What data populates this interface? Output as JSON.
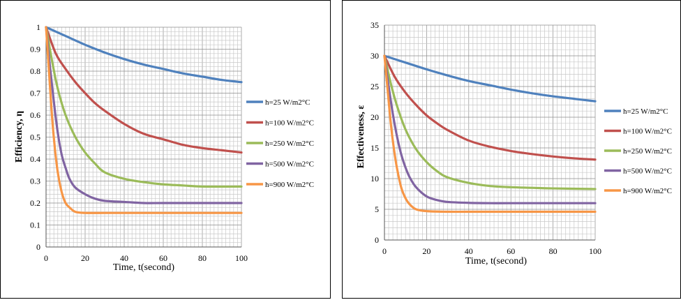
{
  "chart_data": [
    {
      "type": "line",
      "title": "",
      "xlabel": "Time, t(second)",
      "ylabel": "Efficiency, η",
      "xlim": [
        0,
        100
      ],
      "ylim": [
        0,
        1
      ],
      "xticks": [
        "0",
        "20",
        "40",
        "60",
        "80",
        "100"
      ],
      "yticks": [
        "0",
        "0.1",
        "0.2",
        "0.3",
        "0.4",
        "0.5",
        "0.6",
        "0.7",
        "0.8",
        "0.9",
        "1"
      ],
      "grid": true,
      "legend_position": "right",
      "series": [
        {
          "name": "h=25 W/m2°C",
          "color": "#4f81bd",
          "x": [
            0,
            10,
            20,
            30,
            40,
            50,
            60,
            70,
            80,
            90,
            100
          ],
          "y": [
            1.0,
            0.96,
            0.92,
            0.885,
            0.855,
            0.83,
            0.81,
            0.79,
            0.775,
            0.76,
            0.75
          ]
        },
        {
          "name": "h=100 W/m2°C",
          "color": "#c0504d",
          "x": [
            0,
            5,
            10,
            15,
            20,
            25,
            30,
            40,
            50,
            60,
            70,
            80,
            90,
            100
          ],
          "y": [
            1.0,
            0.88,
            0.81,
            0.75,
            0.7,
            0.655,
            0.62,
            0.56,
            0.515,
            0.49,
            0.465,
            0.45,
            0.44,
            0.43
          ]
        },
        {
          "name": "h=250 W/m2°C",
          "color": "#9bbb59",
          "x": [
            0,
            3,
            6,
            10,
            15,
            20,
            25,
            30,
            40,
            50,
            60,
            70,
            80,
            100
          ],
          "y": [
            1.0,
            0.85,
            0.72,
            0.6,
            0.5,
            0.43,
            0.38,
            0.34,
            0.31,
            0.295,
            0.285,
            0.28,
            0.275,
            0.275
          ]
        },
        {
          "name": "h=500 W/m2°C",
          "color": "#8064a2",
          "x": [
            0,
            2,
            4,
            6,
            8,
            10,
            12,
            15,
            20,
            25,
            30,
            40,
            50,
            60,
            80,
            100
          ],
          "y": [
            1.0,
            0.82,
            0.66,
            0.52,
            0.42,
            0.36,
            0.31,
            0.27,
            0.24,
            0.22,
            0.21,
            0.205,
            0.2,
            0.2,
            0.2,
            0.2
          ]
        },
        {
          "name": "h=900 W/m2°C",
          "color": "#f79646",
          "x": [
            0,
            1.5,
            3,
            4.5,
            6,
            8,
            10,
            12,
            15,
            20,
            30,
            40,
            60,
            80,
            100
          ],
          "y": [
            1.0,
            0.8,
            0.6,
            0.45,
            0.34,
            0.25,
            0.2,
            0.18,
            0.16,
            0.155,
            0.155,
            0.155,
            0.155,
            0.155,
            0.155
          ]
        }
      ]
    },
    {
      "type": "line",
      "title": "",
      "xlabel": "Time, t(second)",
      "ylabel": "Effectiveness, ε",
      "xlim": [
        0,
        100
      ],
      "ylim": [
        0,
        35
      ],
      "xticks": [
        "0",
        "20",
        "40",
        "60",
        "80",
        "100"
      ],
      "yticks": [
        "0",
        "5",
        "10",
        "15",
        "20",
        "25",
        "30",
        "35"
      ],
      "grid": true,
      "legend_position": "right",
      "series": [
        {
          "name": "h=25 W/m2°C",
          "color": "#4f81bd",
          "x": [
            0,
            10,
            20,
            30,
            40,
            50,
            60,
            70,
            80,
            90,
            100
          ],
          "y": [
            30,
            28.9,
            27.8,
            26.8,
            25.9,
            25.2,
            24.5,
            23.9,
            23.4,
            23.0,
            22.6
          ]
        },
        {
          "name": "h=100 W/m2°C",
          "color": "#c0504d",
          "x": [
            0,
            5,
            10,
            15,
            20,
            25,
            30,
            40,
            50,
            60,
            70,
            80,
            90,
            100
          ],
          "y": [
            30,
            26.5,
            24.0,
            22.0,
            20.3,
            19.0,
            17.9,
            16.2,
            15.2,
            14.5,
            14.0,
            13.6,
            13.3,
            13.1
          ]
        },
        {
          "name": "h=250 W/m2°C",
          "color": "#9bbb59",
          "x": [
            0,
            3,
            6,
            10,
            15,
            20,
            25,
            30,
            40,
            50,
            60,
            70,
            80,
            100
          ],
          "y": [
            30,
            25.5,
            21.8,
            18.0,
            14.8,
            12.7,
            11.2,
            10.2,
            9.3,
            8.8,
            8.6,
            8.5,
            8.4,
            8.3
          ]
        },
        {
          "name": "h=500 W/m2°C",
          "color": "#8064a2",
          "x": [
            0,
            2,
            4,
            6,
            8,
            10,
            12,
            15,
            20,
            25,
            30,
            40,
            50,
            60,
            80,
            100
          ],
          "y": [
            30,
            25.0,
            20.5,
            16.8,
            13.9,
            11.8,
            10.2,
            8.6,
            7.1,
            6.5,
            6.2,
            6.05,
            6.0,
            6.0,
            6.0,
            6.0
          ]
        },
        {
          "name": "h=900 W/m2°C",
          "color": "#f79646",
          "x": [
            0,
            1.5,
            3,
            4.5,
            6,
            8,
            10,
            12,
            15,
            20,
            30,
            40,
            60,
            80,
            100
          ],
          "y": [
            30,
            24.5,
            19.0,
            14.8,
            11.6,
            8.5,
            6.8,
            5.8,
            5.0,
            4.7,
            4.6,
            4.6,
            4.6,
            4.6,
            4.6
          ]
        }
      ]
    }
  ]
}
